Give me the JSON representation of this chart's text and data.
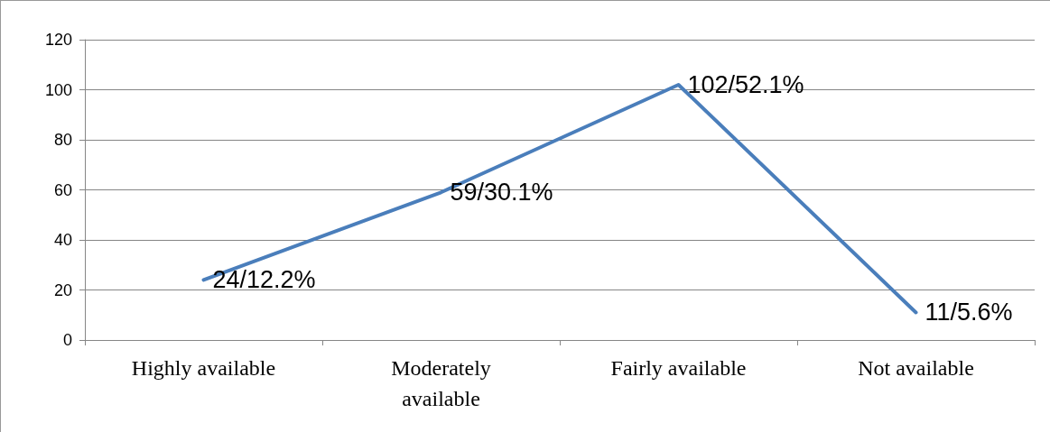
{
  "chart_data": {
    "type": "line",
    "categories": [
      "Highly available",
      "Moderately\navailable",
      "Fairly available",
      "Not available"
    ],
    "series": [
      {
        "color": "#4a7ebb",
        "values": [
          24,
          59,
          102,
          11
        ],
        "value_labels": [
          "24/12.2%",
          "59/30.1%",
          "102/52.1%",
          "11/5.6%"
        ]
      }
    ],
    "ylim": [
      0,
      120
    ],
    "yticks": [
      0,
      20,
      40,
      60,
      80,
      100,
      120
    ],
    "grid": "y",
    "marker": "none",
    "line_style": "solid"
  }
}
